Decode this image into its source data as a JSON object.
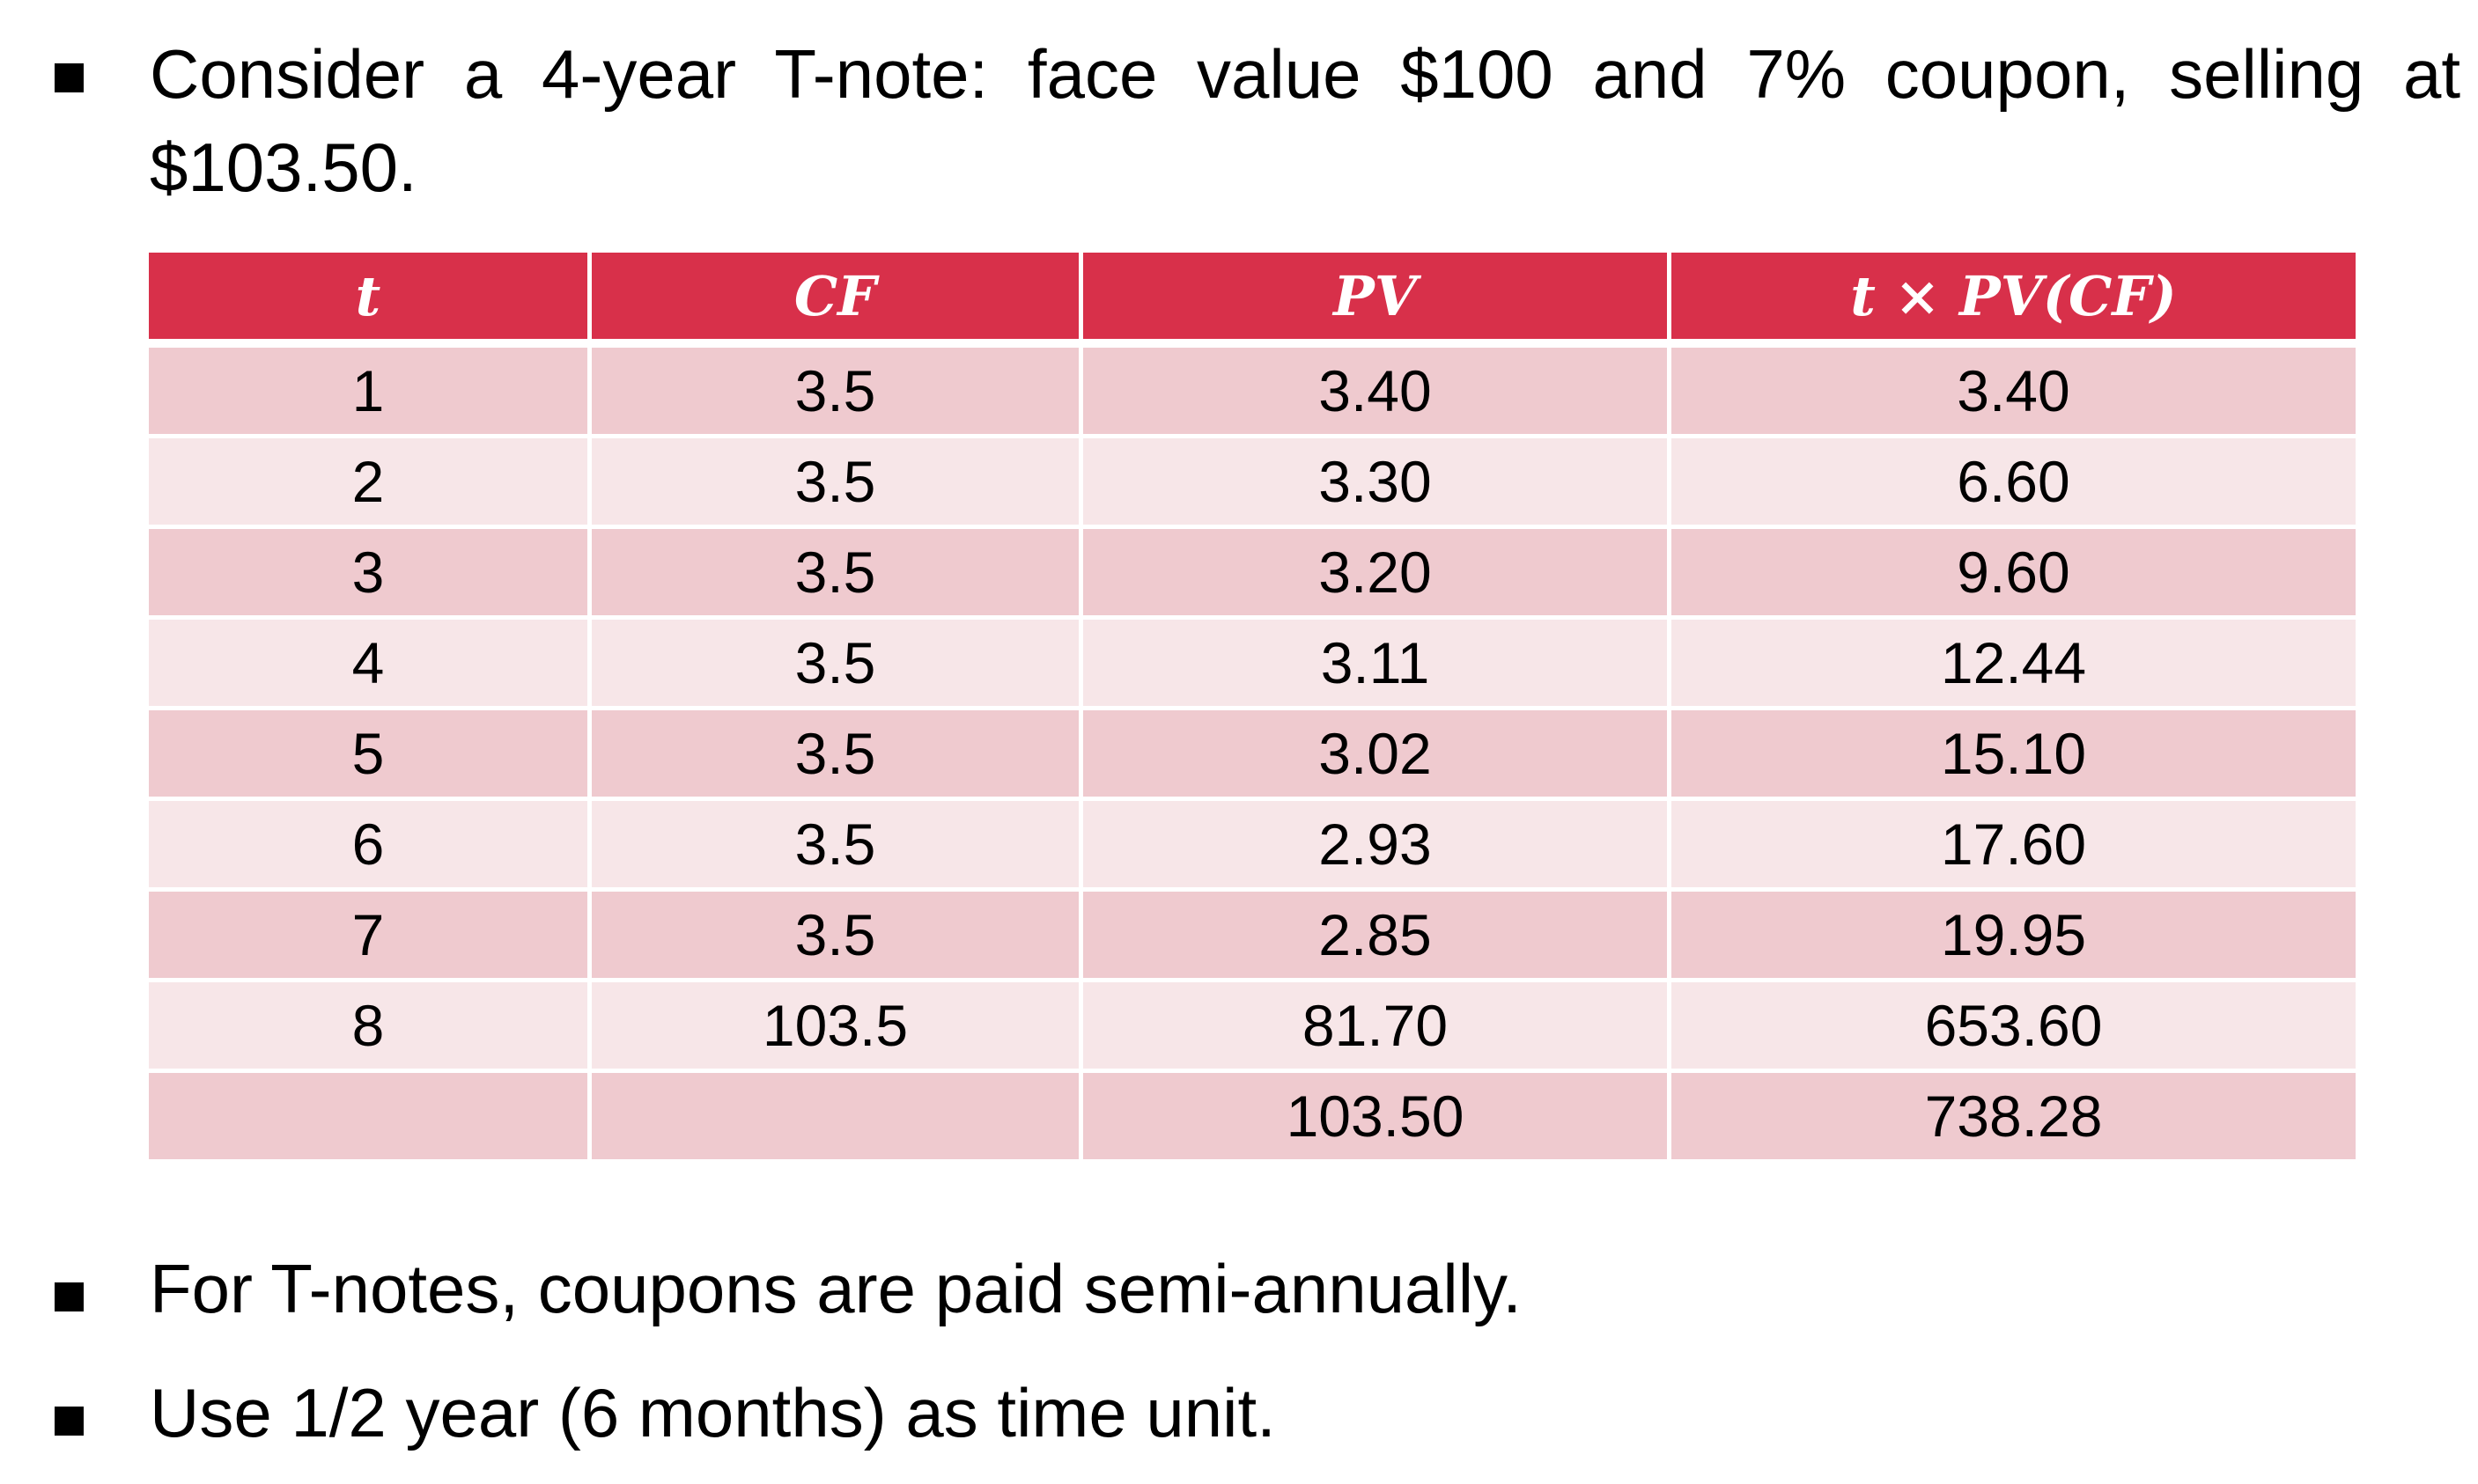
{
  "intro": {
    "text": "Consider a 4-year T-note: face value $100 and 7% coupon, selling at $103.50."
  },
  "table": {
    "headers": [
      "t",
      "CF",
      "PV",
      "t × PV(CF)"
    ],
    "rows": [
      [
        "1",
        "3.5",
        "3.40",
        "3.40"
      ],
      [
        "2",
        "3.5",
        "3.30",
        "6.60"
      ],
      [
        "3",
        "3.5",
        "3.20",
        "9.60"
      ],
      [
        "4",
        "3.5",
        "3.11",
        "12.44"
      ],
      [
        "5",
        "3.5",
        "3.02",
        "15.10"
      ],
      [
        "6",
        "3.5",
        "2.93",
        "17.60"
      ],
      [
        "7",
        "3.5",
        "2.85",
        "19.95"
      ],
      [
        "8",
        "103.5",
        "81.70",
        "653.60"
      ],
      [
        "",
        "",
        "103.50",
        "738.28"
      ]
    ]
  },
  "notes": [
    "For T-notes, coupons are paid semi-annually.",
    "Use 1/2 year (6 months) as time unit."
  ],
  "colors": {
    "header_bg": "#d8304a",
    "row_dark": "#efcacf",
    "row_light": "#f7e6e8"
  }
}
